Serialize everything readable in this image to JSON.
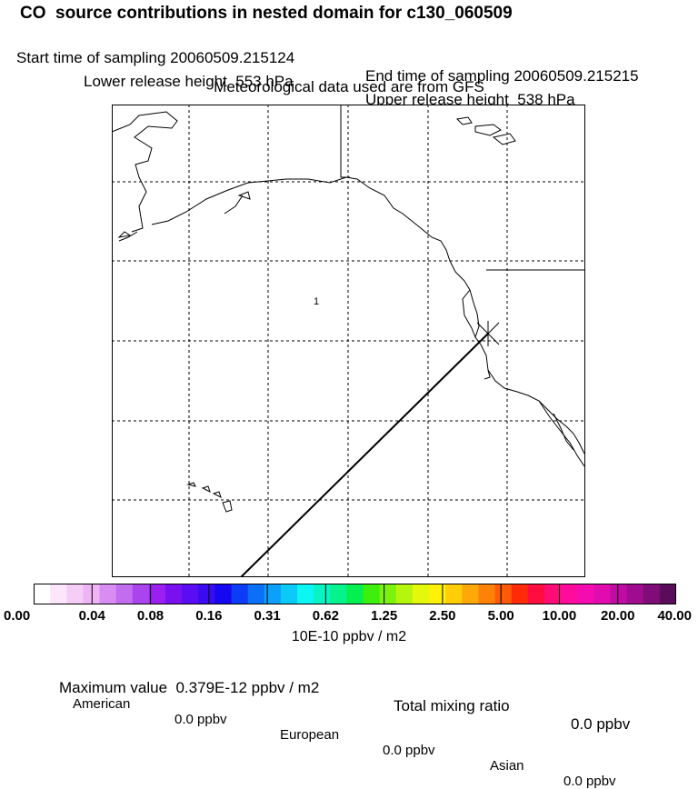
{
  "header": {
    "title": "CO  source contributions in nested domain for c130_060509",
    "start_time": "Start time of sampling 20060509.215124",
    "end_time": "End time of sampling 20060509.215215",
    "lower_height": "Lower release height  553 hPa",
    "upper_height": "Upper release height  538 hPa",
    "met_data": "Meteorological data used are from GFS"
  },
  "map": {
    "region_label": "1",
    "release_marker": "release-point-marker",
    "grid": true
  },
  "colorbar": {
    "tick_labels": [
      "0.00",
      "0.04",
      "0.08",
      "0.16",
      "0.31",
      "0.62",
      "1.25",
      "2.50",
      "5.00",
      "10.00",
      "20.00",
      "40.00"
    ],
    "colors": [
      "#ffffff",
      "#fce6fc",
      "#f6cdf6",
      "#eeb4f5",
      "#d98cf2",
      "#c26df0",
      "#a944ef",
      "#9a1ff0",
      "#7a10f0",
      "#5a0cf2",
      "#3a0af0",
      "#1508f0",
      "#0c3cf5",
      "#0c6ff8",
      "#0ca0fa",
      "#0ccaf8",
      "#0cf6f3",
      "#08f4c2",
      "#06f28c",
      "#04ef50",
      "#3cef0c",
      "#7cf30c",
      "#b6f60c",
      "#e4f80c",
      "#fff208",
      "#ffce08",
      "#ffa808",
      "#ff8208",
      "#ff5a08",
      "#ff2a08",
      "#ff0c40",
      "#ff0c74",
      "#ff0c9c",
      "#f50cb0",
      "#e00cb0",
      "#c00ca4",
      "#a00c90",
      "#800c78",
      "#5a0c5a"
    ],
    "units": "10E-10 ppbv / m2"
  },
  "summary": {
    "max_value": "Maximum value  0.379E-12 ppbv / m2",
    "total_mixing": "Total mixing ratio",
    "total_value": "0.0 ppbv",
    "sources": [
      {
        "name": "American",
        "value": "0.0 ppbv"
      },
      {
        "name": "European",
        "value": "0.0 ppbv"
      },
      {
        "name": "Asian",
        "value": "0.0 ppbv"
      }
    ]
  }
}
